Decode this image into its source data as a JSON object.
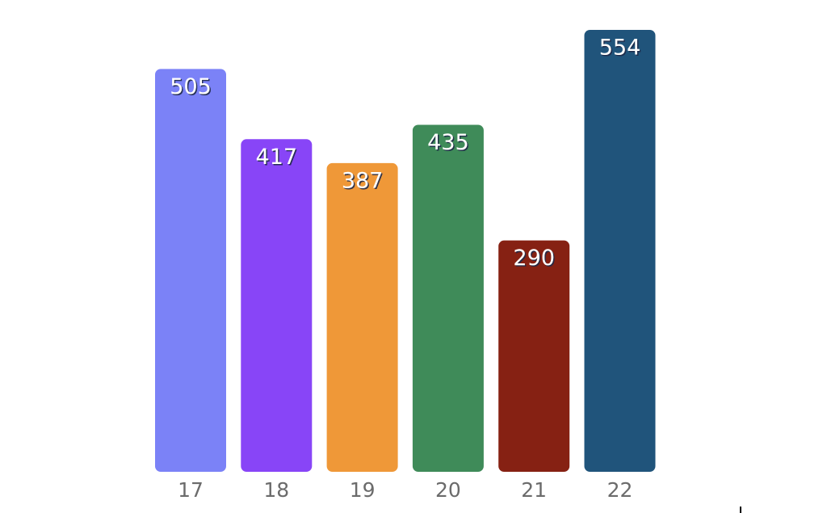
{
  "chart_data": {
    "type": "bar",
    "categories": [
      "17",
      "18",
      "19",
      "20",
      "21",
      "22"
    ],
    "values": [
      505,
      417,
      387,
      435,
      290,
      554
    ],
    "colors": [
      "#7b82f7",
      "#8845f7",
      "#ef9838",
      "#3f8b59",
      "#862113",
      "#20547b"
    ],
    "ylim": [
      0,
      554
    ]
  }
}
